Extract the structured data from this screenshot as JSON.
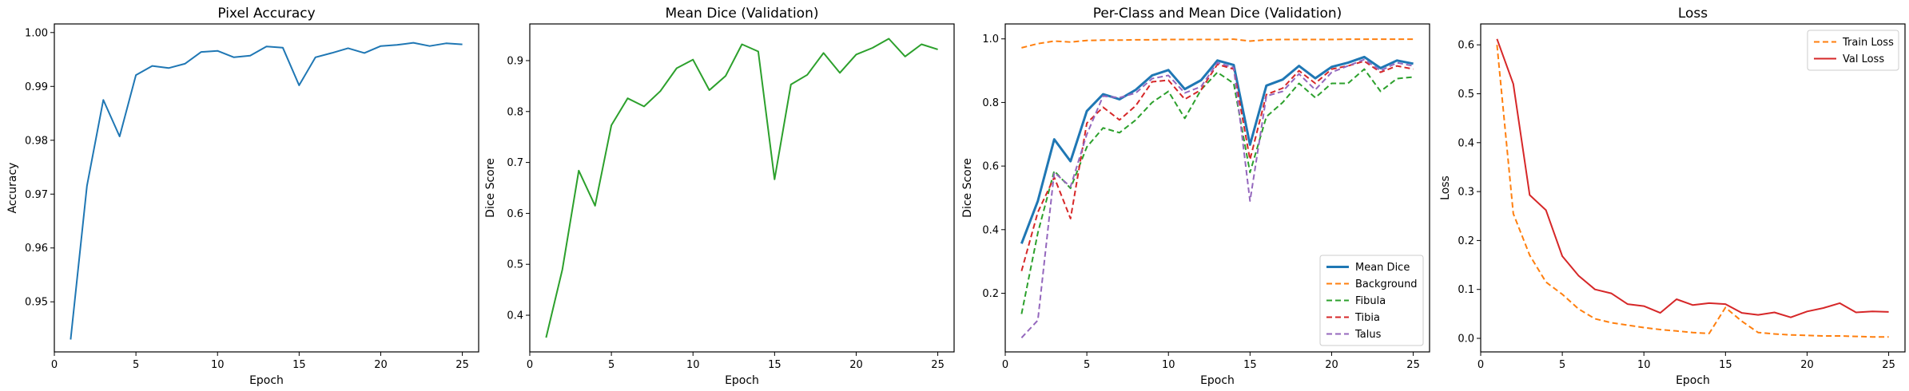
{
  "chart_data": [
    {
      "type": "line",
      "title": "Pixel Accuracy",
      "xlabel": "Epoch",
      "ylabel": "Accuracy",
      "xlim": [
        0,
        26
      ],
      "ylim": [
        0.9407,
        1.0016
      ],
      "xticks": [
        0,
        5,
        10,
        15,
        20,
        25
      ],
      "yticks": [
        0.95,
        0.96,
        0.97,
        0.98,
        0.99,
        1.0
      ],
      "xtick_labels": [
        "0",
        "5",
        "10",
        "15",
        "20",
        "25"
      ],
      "ytick_labels": [
        "0.95",
        "0.96",
        "0.97",
        "0.98",
        "0.99",
        "1.00"
      ],
      "grid": false,
      "legend": null,
      "x": [
        1,
        2,
        3,
        4,
        5,
        6,
        7,
        8,
        9,
        10,
        11,
        12,
        13,
        14,
        15,
        16,
        17,
        18,
        19,
        20,
        21,
        22,
        23,
        24,
        25
      ],
      "series": [
        {
          "color": "#1f77b4",
          "dash": "",
          "width": 2,
          "values": [
            0.943,
            0.9715,
            0.9875,
            0.9807,
            0.9921,
            0.9938,
            0.9934,
            0.9942,
            0.9964,
            0.9966,
            0.9954,
            0.9957,
            0.9974,
            0.9972,
            0.9902,
            0.9954,
            0.9962,
            0.9971,
            0.9962,
            0.9975,
            0.9977,
            0.9981,
            0.9975,
            0.998,
            0.9978
          ]
        }
      ]
    },
    {
      "type": "line",
      "title": "Mean Dice (Validation)",
      "xlabel": "Epoch",
      "ylabel": "Dice Score",
      "xlim": [
        0,
        26
      ],
      "ylim": [
        0.328,
        0.972
      ],
      "xticks": [
        0,
        5,
        10,
        15,
        20,
        25
      ],
      "yticks": [
        0.4,
        0.5,
        0.6,
        0.7,
        0.8,
        0.9
      ],
      "xtick_labels": [
        "0",
        "5",
        "10",
        "15",
        "20",
        "25"
      ],
      "ytick_labels": [
        "0.4",
        "0.5",
        "0.6",
        "0.7",
        "0.8",
        "0.9"
      ],
      "grid": false,
      "legend": null,
      "x": [
        1,
        2,
        3,
        4,
        5,
        6,
        7,
        8,
        9,
        10,
        11,
        12,
        13,
        14,
        15,
        16,
        17,
        18,
        19,
        20,
        21,
        22,
        23,
        24,
        25
      ],
      "series": [
        {
          "color": "#2ca02c",
          "dash": "",
          "width": 2,
          "values": [
            0.356,
            0.49,
            0.684,
            0.615,
            0.773,
            0.826,
            0.81,
            0.84,
            0.885,
            0.902,
            0.842,
            0.87,
            0.932,
            0.918,
            0.667,
            0.853,
            0.872,
            0.915,
            0.876,
            0.912,
            0.925,
            0.943,
            0.908,
            0.932,
            0.922
          ]
        }
      ]
    },
    {
      "type": "line",
      "title": "Per-Class and Mean Dice (Validation)",
      "xlabel": "Epoch",
      "ylabel": "Dice Score",
      "xlim": [
        0,
        26
      ],
      "ylim": [
        0.0155,
        1.047
      ],
      "xticks": [
        0,
        5,
        10,
        15,
        20,
        25
      ],
      "yticks": [
        0.2,
        0.4,
        0.6,
        0.8,
        1.0
      ],
      "xtick_labels": [
        "0",
        "5",
        "10",
        "15",
        "20",
        "25"
      ],
      "ytick_labels": [
        "0.2",
        "0.4",
        "0.6",
        "0.8",
        "1.0"
      ],
      "grid": false,
      "legend": "lower right",
      "x": [
        1,
        2,
        3,
        4,
        5,
        6,
        7,
        8,
        9,
        10,
        11,
        12,
        13,
        14,
        15,
        16,
        17,
        18,
        19,
        20,
        21,
        22,
        23,
        24,
        25
      ],
      "series": [
        {
          "name": "Mean Dice",
          "color": "#1f77b4",
          "dash": "",
          "width": 3,
          "values": [
            0.356,
            0.49,
            0.684,
            0.615,
            0.773,
            0.826,
            0.81,
            0.84,
            0.885,
            0.902,
            0.842,
            0.87,
            0.932,
            0.918,
            0.667,
            0.853,
            0.872,
            0.915,
            0.876,
            0.912,
            0.925,
            0.943,
            0.908,
            0.932,
            0.922
          ]
        },
        {
          "name": "Background",
          "color": "#ff7f0e",
          "dash": "7,4",
          "width": 2,
          "values": [
            0.972,
            0.985,
            0.993,
            0.99,
            0.995,
            0.996,
            0.996,
            0.997,
            0.997,
            0.998,
            0.998,
            0.998,
            0.998,
            0.999,
            0.993,
            0.997,
            0.998,
            0.998,
            0.998,
            0.998,
            0.999,
            0.999,
            0.999,
            0.999,
            0.999
          ]
        },
        {
          "name": "Fibula",
          "color": "#2ca02c",
          "dash": "7,4",
          "width": 2,
          "values": [
            0.135,
            0.39,
            0.585,
            0.53,
            0.66,
            0.72,
            0.705,
            0.745,
            0.8,
            0.835,
            0.75,
            0.84,
            0.895,
            0.86,
            0.58,
            0.755,
            0.8,
            0.86,
            0.815,
            0.86,
            0.86,
            0.905,
            0.835,
            0.875,
            0.88
          ]
        },
        {
          "name": "Tibia",
          "color": "#d62728",
          "dash": "7,4",
          "width": 2,
          "values": [
            0.27,
            0.455,
            0.565,
            0.435,
            0.735,
            0.785,
            0.745,
            0.79,
            0.865,
            0.87,
            0.81,
            0.84,
            0.92,
            0.905,
            0.62,
            0.825,
            0.845,
            0.9,
            0.86,
            0.905,
            0.915,
            0.93,
            0.895,
            0.915,
            0.905
          ]
        },
        {
          "name": "Talus",
          "color": "#9467bd",
          "dash": "7,4",
          "width": 2,
          "values": [
            0.06,
            0.115,
            0.58,
            0.535,
            0.7,
            0.82,
            0.815,
            0.83,
            0.875,
            0.885,
            0.83,
            0.85,
            0.925,
            0.91,
            0.49,
            0.82,
            0.835,
            0.89,
            0.84,
            0.895,
            0.915,
            0.935,
            0.9,
            0.925,
            0.915
          ]
        }
      ]
    },
    {
      "type": "line",
      "title": "Loss",
      "xlabel": "Epoch",
      "ylabel": "Loss",
      "xlim": [
        0,
        26
      ],
      "ylim": [
        -0.0277,
        0.6427
      ],
      "xticks": [
        0,
        5,
        10,
        15,
        20,
        25
      ],
      "yticks": [
        0.0,
        0.1,
        0.2,
        0.3,
        0.4,
        0.5,
        0.6
      ],
      "xtick_labels": [
        "0",
        "5",
        "10",
        "15",
        "20",
        "25"
      ],
      "ytick_labels": [
        "0.0",
        "0.1",
        "0.2",
        "0.3",
        "0.4",
        "0.5",
        "0.6"
      ],
      "grid": false,
      "legend": "upper right",
      "x": [
        1,
        2,
        3,
        4,
        5,
        6,
        7,
        8,
        9,
        10,
        11,
        12,
        13,
        14,
        15,
        16,
        17,
        18,
        19,
        20,
        21,
        22,
        23,
        24,
        25
      ],
      "series": [
        {
          "name": "Train Loss",
          "color": "#ff7f0e",
          "dash": "7,4",
          "width": 2,
          "values": [
            0.6,
            0.255,
            0.17,
            0.115,
            0.09,
            0.06,
            0.04,
            0.032,
            0.027,
            0.022,
            0.018,
            0.015,
            0.012,
            0.01,
            0.063,
            0.035,
            0.012,
            0.009,
            0.007,
            0.006,
            0.005,
            0.005,
            0.004,
            0.003,
            0.003
          ]
        },
        {
          "name": "Val Loss",
          "color": "#d62728",
          "dash": "",
          "width": 2,
          "values": [
            0.612,
            0.52,
            0.293,
            0.262,
            0.168,
            0.128,
            0.1,
            0.092,
            0.07,
            0.066,
            0.052,
            0.08,
            0.068,
            0.072,
            0.07,
            0.052,
            0.048,
            0.053,
            0.043,
            0.055,
            0.062,
            0.072,
            0.053,
            0.055,
            0.054
          ]
        }
      ]
    }
  ]
}
